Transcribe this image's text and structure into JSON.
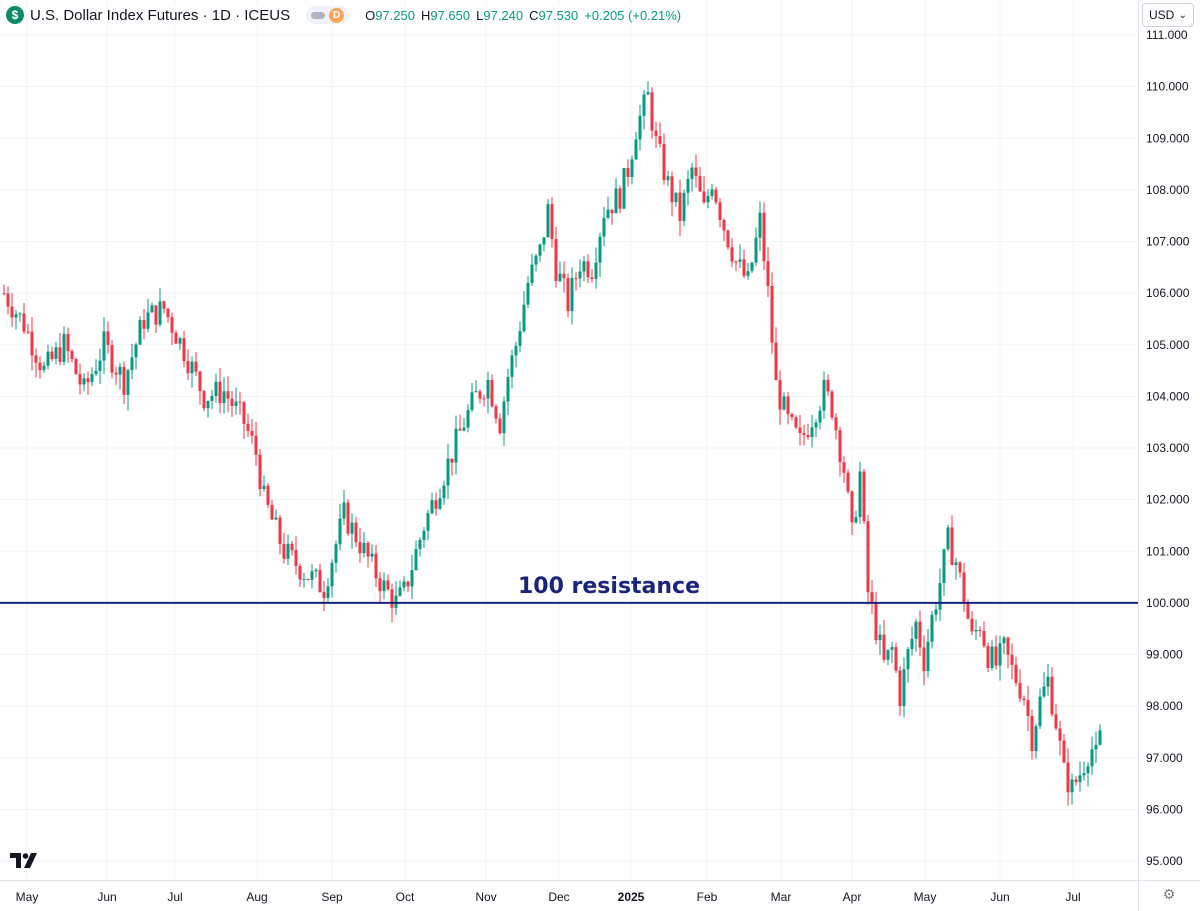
{
  "header": {
    "symbol_icon": "$",
    "title": "U.S. Dollar Index Futures · 1D · ICEUS",
    "interval_badge": "D",
    "ohlc": {
      "o_label": "O",
      "o": "97.250",
      "h_label": "H",
      "h": "97.650",
      "l_label": "L",
      "l": "97.240",
      "c_label": "C",
      "c": "97.530",
      "change": "+0.205 (+0.21%)"
    }
  },
  "currency_selector": {
    "value": "USD"
  },
  "colors": {
    "up": "#089981",
    "down": "#f23645",
    "resistance": "#1a237e",
    "grid": "#f0f3fa"
  },
  "chart_data": {
    "type": "candlestick",
    "title": "U.S. Dollar Index Futures · 1D · ICEUS",
    "y_axis": {
      "ticks": [
        "111.000",
        "110.000",
        "109.000",
        "108.000",
        "107.000",
        "106.000",
        "105.000",
        "104.000",
        "103.000",
        "102.000",
        "101.000",
        "100.000",
        "99.000",
        "98.000",
        "97.000",
        "96.000",
        "95.000"
      ],
      "ylim": [
        94.95,
        111.05
      ],
      "side": "right"
    },
    "x_axis": {
      "ticks": [
        "May",
        "Jun",
        "Jul",
        "Aug",
        "Sep",
        "Oct",
        "Nov",
        "Dec",
        "2025",
        "Feb",
        "Mar",
        "Apr",
        "May",
        "Jun",
        "Jul"
      ],
      "bold_ticks": [
        "2025"
      ]
    },
    "grid": true,
    "annotation": {
      "label": "100 resistance",
      "value": 100.0
    },
    "last_ohlc": {
      "open": 97.25,
      "high": 97.65,
      "low": 97.24,
      "close": 97.53
    },
    "price_path": [
      [
        0,
        106.0
      ],
      [
        5,
        105.4
      ],
      [
        10,
        104.5
      ],
      [
        15,
        105.0
      ],
      [
        20,
        104.1
      ],
      [
        25,
        105.0
      ],
      [
        30,
        104.3
      ],
      [
        35,
        105.5
      ],
      [
        40,
        105.7
      ],
      [
        45,
        104.9
      ],
      [
        50,
        104.0
      ],
      [
        55,
        104.1
      ],
      [
        60,
        103.5
      ],
      [
        63,
        102.9
      ],
      [
        65,
        102.0
      ],
      [
        70,
        101.0
      ],
      [
        75,
        100.6
      ],
      [
        80,
        100.3
      ],
      [
        85,
        101.7
      ],
      [
        88,
        101.3
      ],
      [
        92,
        100.7
      ],
      [
        95,
        100.3
      ],
      [
        98,
        100.0
      ],
      [
        100,
        100.2
      ],
      [
        105,
        101.5
      ],
      [
        110,
        102.5
      ],
      [
        115,
        103.5
      ],
      [
        118,
        104.0
      ],
      [
        121,
        104.3
      ],
      [
        124,
        103.5
      ],
      [
        126,
        104.4
      ],
      [
        128,
        105.0
      ],
      [
        131,
        106.2
      ],
      [
        134,
        106.8
      ],
      [
        136,
        107.6
      ],
      [
        138,
        106.5
      ],
      [
        141,
        105.8
      ],
      [
        144,
        106.6
      ],
      [
        147,
        106.5
      ],
      [
        150,
        107.6
      ],
      [
        154,
        107.9
      ],
      [
        156,
        108.4
      ],
      [
        158,
        109.2
      ],
      [
        161,
        109.8
      ],
      [
        163,
        108.9
      ],
      [
        166,
        108.1
      ],
      [
        169,
        107.5
      ],
      [
        172,
        108.4
      ],
      [
        175,
        107.6
      ],
      [
        177,
        108.2
      ],
      [
        180,
        107.3
      ],
      [
        183,
        106.6
      ],
      [
        186,
        106.2
      ],
      [
        189,
        107.4
      ],
      [
        191,
        106.0
      ],
      [
        193,
        104.2
      ],
      [
        196,
        103.5
      ],
      [
        199,
        103.1
      ],
      [
        202,
        103.6
      ],
      [
        205,
        104.1
      ],
      [
        207,
        103.8
      ],
      [
        210,
        102.6
      ],
      [
        212,
        101.3
      ],
      [
        214,
        102.5
      ],
      [
        216,
        100.2
      ],
      [
        218,
        99.5
      ],
      [
        220,
        98.8
      ],
      [
        222,
        99.1
      ],
      [
        224,
        98.2
      ],
      [
        226,
        99.0
      ],
      [
        228,
        99.6
      ],
      [
        230,
        98.9
      ],
      [
        232,
        99.7
      ],
      [
        234,
        100.4
      ],
      [
        236,
        101.2
      ],
      [
        238,
        100.8
      ],
      [
        240,
        100.1
      ],
      [
        242,
        99.3
      ],
      [
        244,
        99.6
      ],
      [
        246,
        99.0
      ],
      [
        248,
        98.8
      ],
      [
        250,
        99.1
      ],
      [
        252,
        98.7
      ],
      [
        255,
        98.2
      ],
      [
        257,
        97.4
      ],
      [
        259,
        98.1
      ],
      [
        261,
        98.5
      ],
      [
        263,
        97.7
      ],
      [
        265,
        96.7
      ],
      [
        267,
        96.4
      ],
      [
        269,
        96.7
      ],
      [
        271,
        97.1
      ],
      [
        273,
        97.25
      ]
    ]
  }
}
